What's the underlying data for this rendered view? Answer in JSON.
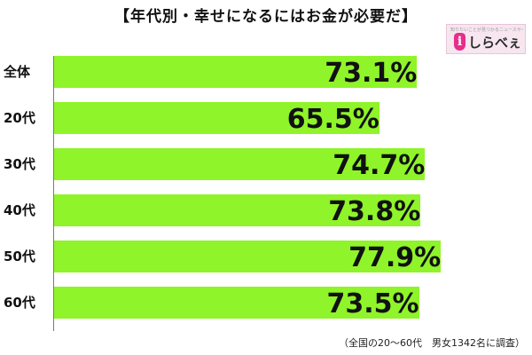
{
  "title": "【年代別・幸せになるにはお金が必要だ】",
  "logo": {
    "tagline": "知りたいことが見つかるニュースサイト",
    "mark": "i",
    "text": "しらべぇ"
  },
  "footnote": "（全国の20～60代　男女1342名に調査）",
  "colors": {
    "bar": "#8ff429",
    "text": "#111111",
    "logo_accent": "#e62e8b"
  },
  "chart_data": {
    "type": "bar",
    "orientation": "horizontal",
    "title": "【年代別・幸せになるにはお金が必要だ】",
    "categories": [
      "全体",
      "20代",
      "30代",
      "40代",
      "50代",
      "60代"
    ],
    "values": [
      73.1,
      65.5,
      74.7,
      73.8,
      77.9,
      73.5
    ],
    "value_labels": [
      "73.1%",
      "65.5%",
      "74.7%",
      "73.8%",
      "77.9%",
      "73.5%"
    ],
    "unit": "%",
    "xlabel": "",
    "ylabel": "",
    "xlim": [
      0,
      100
    ],
    "grid": false,
    "legend": "none"
  }
}
